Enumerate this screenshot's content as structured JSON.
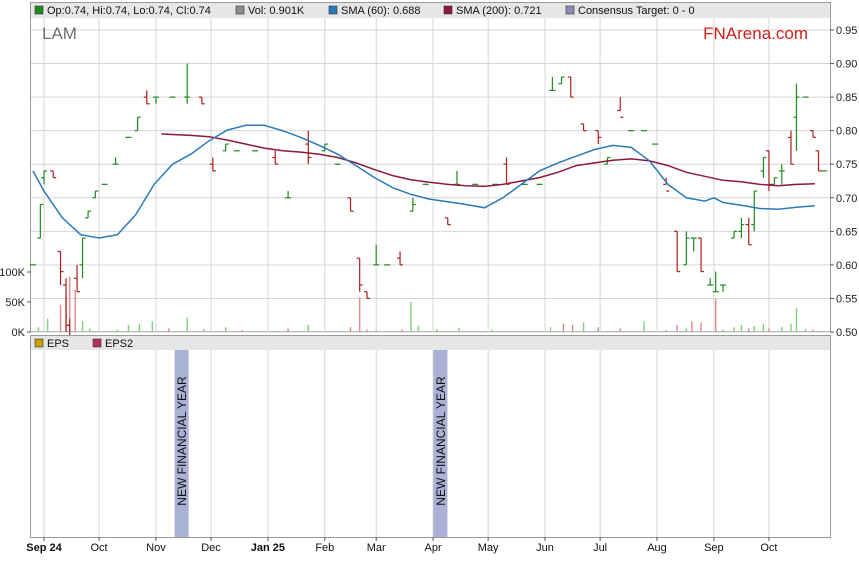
{
  "ticker": "LAM",
  "brand": "FNArena.com",
  "legend_top": [
    {
      "label": "Op:0.74, Hi:0.74, Lo:0.74, Cl:0.74",
      "color": "#1f8a1f"
    },
    {
      "label": "Vol: 0.901K",
      "color": "#8c8c8c"
    },
    {
      "label": "SMA (60): 0.688",
      "color": "#2a7ab8"
    },
    {
      "label": "SMA (200): 0.721",
      "color": "#8b1a3a"
    },
    {
      "label": "Consensus Target: 0 - 0",
      "color": "#8a8fb8"
    }
  ],
  "legend_bottom": [
    {
      "label": "EPS",
      "color": "#c8a000"
    },
    {
      "label": "EPS2",
      "color": "#b03060"
    }
  ],
  "annotations": [
    {
      "text": "NEW FINANCIAL YEAR",
      "day": 75
    },
    {
      "text": "NEW FINANCIAL YEAR",
      "day": 216
    }
  ],
  "colors": {
    "up": "#1f8a1f",
    "down": "#b01c1c",
    "sma60": "#2a7ab8",
    "sma200": "#8b1a3a",
    "band": "#a9b2d4",
    "grid": "#d6d6d6"
  },
  "chart_data": {
    "type": "line",
    "x_months": [
      {
        "label": "Sep 24",
        "day": 0
      },
      {
        "label": "Oct",
        "day": 30
      },
      {
        "label": "Nov",
        "day": 61
      },
      {
        "label": "Dec",
        "day": 91
      },
      {
        "label": "Jan 25",
        "day": 122
      },
      {
        "label": "Feb",
        "day": 153
      },
      {
        "label": "Mar",
        "day": 181
      },
      {
        "label": "Apr",
        "day": 212
      },
      {
        "label": "May",
        "day": 242
      },
      {
        "label": "Jun",
        "day": 273
      },
      {
        "label": "Jul",
        "day": 303
      },
      {
        "label": "Aug",
        "day": 334
      },
      {
        "label": "Sep",
        "day": 365
      },
      {
        "label": "Oct",
        "day": 395
      }
    ],
    "x_range": [
      -6,
      425
    ],
    "price_axis": {
      "min": 0.5,
      "max": 0.95,
      "ticks": [
        "0.50",
        "0.55",
        "0.60",
        "0.65",
        "0.70",
        "0.75",
        "0.80",
        "0.85",
        "0.90",
        "0.95"
      ]
    },
    "volume_axis": {
      "max": 150000,
      "ticks": [
        {
          "label": "0K",
          "v": 0
        },
        {
          "label": "50K",
          "v": 50000
        },
        {
          "label": "100K",
          "v": 100000
        }
      ]
    },
    "price": [
      {
        "d": -6,
        "o": 0.6,
        "h": 0.6,
        "l": 0.6,
        "c": 0.6
      },
      {
        "d": -2,
        "o": 0.64,
        "h": 0.69,
        "l": 0.64,
        "c": 0.69
      },
      {
        "d": 0,
        "o": 0.73,
        "h": 0.74,
        "l": 0.72,
        "c": 0.74
      },
      {
        "d": 5,
        "o": 0.74,
        "h": 0.74,
        "l": 0.73,
        "c": 0.73
      },
      {
        "d": 9,
        "o": 0.62,
        "h": 0.62,
        "l": 0.57,
        "c": 0.59
      },
      {
        "d": 12,
        "o": 0.57,
        "h": 0.58,
        "l": 0.5,
        "c": 0.51
      },
      {
        "d": 14,
        "o": 0.51,
        "h": 0.52,
        "l": 0.49,
        "c": 0.49
      },
      {
        "d": 18,
        "o": 0.58,
        "h": 0.6,
        "l": 0.56,
        "c": 0.56
      },
      {
        "d": 21,
        "o": 0.6,
        "h": 0.64,
        "l": 0.58,
        "c": 0.64
      },
      {
        "d": 24,
        "o": 0.67,
        "h": 0.68,
        "l": 0.67,
        "c": 0.68
      },
      {
        "d": 28,
        "o": 0.7,
        "h": 0.71,
        "l": 0.7,
        "c": 0.71
      },
      {
        "d": 33,
        "o": 0.72,
        "h": 0.72,
        "l": 0.72,
        "c": 0.72
      },
      {
        "d": 39,
        "o": 0.75,
        "h": 0.76,
        "l": 0.75,
        "c": 0.75
      },
      {
        "d": 46,
        "o": 0.79,
        "h": 0.79,
        "l": 0.79,
        "c": 0.79
      },
      {
        "d": 51,
        "o": 0.8,
        "h": 0.82,
        "l": 0.8,
        "c": 0.82
      },
      {
        "d": 56,
        "o": 0.85,
        "h": 0.86,
        "l": 0.84,
        "c": 0.84
      },
      {
        "d": 61,
        "o": 0.85,
        "h": 0.85,
        "l": 0.84,
        "c": 0.85
      },
      {
        "d": 70,
        "o": 0.85,
        "h": 0.85,
        "l": 0.85,
        "c": 0.85
      },
      {
        "d": 78,
        "o": 0.85,
        "h": 0.9,
        "l": 0.84,
        "c": 0.85
      },
      {
        "d": 86,
        "o": 0.85,
        "h": 0.85,
        "l": 0.84,
        "c": 0.84
      },
      {
        "d": 92,
        "o": 0.75,
        "h": 0.76,
        "l": 0.74,
        "c": 0.74
      },
      {
        "d": 99,
        "o": 0.77,
        "h": 0.78,
        "l": 0.77,
        "c": 0.78
      },
      {
        "d": 105,
        "o": 0.77,
        "h": 0.77,
        "l": 0.77,
        "c": 0.77
      },
      {
        "d": 115,
        "o": 0.77,
        "h": 0.77,
        "l": 0.77,
        "c": 0.77
      },
      {
        "d": 126,
        "o": 0.76,
        "h": 0.77,
        "l": 0.75,
        "c": 0.75
      },
      {
        "d": 133,
        "o": 0.7,
        "h": 0.71,
        "l": 0.7,
        "c": 0.7
      },
      {
        "d": 144,
        "o": 0.78,
        "h": 0.8,
        "l": 0.75,
        "c": 0.76
      },
      {
        "d": 153,
        "o": 0.77,
        "h": 0.78,
        "l": 0.77,
        "c": 0.78
      },
      {
        "d": 160,
        "o": 0.75,
        "h": 0.75,
        "l": 0.75,
        "c": 0.75
      },
      {
        "d": 167,
        "o": 0.7,
        "h": 0.7,
        "l": 0.68,
        "c": 0.68
      },
      {
        "d": 172,
        "o": 0.61,
        "h": 0.61,
        "l": 0.56,
        "c": 0.57
      },
      {
        "d": 176,
        "o": 0.56,
        "h": 0.56,
        "l": 0.55,
        "c": 0.55
      },
      {
        "d": 181,
        "o": 0.6,
        "h": 0.63,
        "l": 0.6,
        "c": 0.6
      },
      {
        "d": 187,
        "o": 0.6,
        "h": 0.6,
        "l": 0.6,
        "c": 0.6
      },
      {
        "d": 194,
        "o": 0.61,
        "h": 0.62,
        "l": 0.6,
        "c": 0.6
      },
      {
        "d": 201,
        "o": 0.68,
        "h": 0.7,
        "l": 0.68,
        "c": 0.69
      },
      {
        "d": 208,
        "o": 0.72,
        "h": 0.72,
        "l": 0.72,
        "c": 0.72
      },
      {
        "d": 220,
        "o": 0.67,
        "h": 0.67,
        "l": 0.66,
        "c": 0.66
      },
      {
        "d": 225,
        "o": 0.72,
        "h": 0.74,
        "l": 0.72,
        "c": 0.72
      },
      {
        "d": 235,
        "o": 0.72,
        "h": 0.72,
        "l": 0.72,
        "c": 0.72
      },
      {
        "d": 246,
        "o": 0.72,
        "h": 0.72,
        "l": 0.72,
        "c": 0.72
      },
      {
        "d": 252,
        "o": 0.75,
        "h": 0.76,
        "l": 0.72,
        "c": 0.72
      },
      {
        "d": 262,
        "o": 0.72,
        "h": 0.72,
        "l": 0.72,
        "c": 0.72
      },
      {
        "d": 270,
        "o": 0.72,
        "h": 0.72,
        "l": 0.72,
        "c": 0.72
      },
      {
        "d": 277,
        "o": 0.86,
        "h": 0.88,
        "l": 0.86,
        "c": 0.86
      },
      {
        "d": 282,
        "o": 0.87,
        "h": 0.88,
        "l": 0.87,
        "c": 0.88
      },
      {
        "d": 287,
        "o": 0.88,
        "h": 0.88,
        "l": 0.85,
        "c": 0.85
      },
      {
        "d": 294,
        "o": 0.81,
        "h": 0.81,
        "l": 0.8,
        "c": 0.8
      },
      {
        "d": 302,
        "o": 0.8,
        "h": 0.8,
        "l": 0.78,
        "c": 0.79
      },
      {
        "d": 307,
        "o": 0.75,
        "h": 0.76,
        "l": 0.75,
        "c": 0.76
      },
      {
        "d": 314,
        "o": 0.83,
        "h": 0.85,
        "l": 0.83,
        "c": 0.82
      },
      {
        "d": 320,
        "o": 0.8,
        "h": 0.8,
        "l": 0.8,
        "c": 0.8
      },
      {
        "d": 327,
        "o": 0.8,
        "h": 0.8,
        "l": 0.8,
        "c": 0.8
      },
      {
        "d": 333,
        "o": 0.78,
        "h": 0.78,
        "l": 0.78,
        "c": 0.78
      },
      {
        "d": 339,
        "o": 0.72,
        "h": 0.73,
        "l": 0.72,
        "c": 0.71
      },
      {
        "d": 345,
        "o": 0.65,
        "h": 0.65,
        "l": 0.59,
        "c": 0.59
      },
      {
        "d": 350,
        "o": 0.6,
        "h": 0.65,
        "l": 0.6,
        "c": 0.64
      },
      {
        "d": 354,
        "o": 0.64,
        "h": 0.64,
        "l": 0.62,
        "c": 0.64
      },
      {
        "d": 358,
        "o": 0.64,
        "h": 0.64,
        "l": 0.59,
        "c": 0.59
      },
      {
        "d": 363,
        "o": 0.57,
        "h": 0.58,
        "l": 0.57,
        "c": 0.57
      },
      {
        "d": 366,
        "o": 0.56,
        "h": 0.59,
        "l": 0.56,
        "c": 0.56
      },
      {
        "d": 370,
        "o": 0.57,
        "h": 0.57,
        "l": 0.56,
        "c": 0.57
      },
      {
        "d": 376,
        "o": 0.64,
        "h": 0.65,
        "l": 0.64,
        "c": 0.65
      },
      {
        "d": 380,
        "o": 0.65,
        "h": 0.67,
        "l": 0.64,
        "c": 0.66
      },
      {
        "d": 384,
        "o": 0.66,
        "h": 0.67,
        "l": 0.63,
        "c": 0.63
      },
      {
        "d": 387,
        "o": 0.66,
        "h": 0.71,
        "l": 0.65,
        "c": 0.71
      },
      {
        "d": 392,
        "o": 0.74,
        "h": 0.76,
        "l": 0.73,
        "c": 0.76
      },
      {
        "d": 395,
        "o": 0.77,
        "h": 0.77,
        "l": 0.71,
        "c": 0.72
      },
      {
        "d": 398,
        "o": 0.72,
        "h": 0.73,
        "l": 0.72,
        "c": 0.73
      },
      {
        "d": 402,
        "o": 0.74,
        "h": 0.75,
        "l": 0.72,
        "c": 0.74
      },
      {
        "d": 407,
        "o": 0.79,
        "h": 0.8,
        "l": 0.75,
        "c": 0.75
      },
      {
        "d": 410,
        "o": 0.82,
        "h": 0.87,
        "l": 0.77,
        "c": 0.85
      },
      {
        "d": 415,
        "o": 0.85,
        "h": 0.85,
        "l": 0.85,
        "c": 0.85
      },
      {
        "d": 419,
        "o": 0.8,
        "h": 0.8,
        "l": 0.79,
        "c": 0.79
      },
      {
        "d": 422,
        "o": 0.77,
        "h": 0.77,
        "l": 0.74,
        "c": 0.74
      },
      {
        "d": 425,
        "o": 0.74,
        "h": 0.74,
        "l": 0.74,
        "c": 0.74
      }
    ],
    "sma60": [
      [
        -6,
        0.74
      ],
      [
        0,
        0.71
      ],
      [
        10,
        0.67
      ],
      [
        20,
        0.645
      ],
      [
        30,
        0.64
      ],
      [
        40,
        0.645
      ],
      [
        50,
        0.675
      ],
      [
        60,
        0.72
      ],
      [
        70,
        0.75
      ],
      [
        80,
        0.765
      ],
      [
        90,
        0.785
      ],
      [
        100,
        0.801
      ],
      [
        110,
        0.808
      ],
      [
        120,
        0.808
      ],
      [
        130,
        0.8
      ],
      [
        140,
        0.79
      ],
      [
        150,
        0.778
      ],
      [
        160,
        0.765
      ],
      [
        170,
        0.748
      ],
      [
        180,
        0.73
      ],
      [
        190,
        0.715
      ],
      [
        200,
        0.705
      ],
      [
        210,
        0.698
      ],
      [
        220,
        0.694
      ],
      [
        230,
        0.69
      ],
      [
        240,
        0.685
      ],
      [
        250,
        0.7
      ],
      [
        260,
        0.72
      ],
      [
        270,
        0.74
      ],
      [
        280,
        0.752
      ],
      [
        290,
        0.762
      ],
      [
        300,
        0.772
      ],
      [
        310,
        0.778
      ],
      [
        320,
        0.775
      ],
      [
        330,
        0.755
      ],
      [
        340,
        0.72
      ],
      [
        350,
        0.7
      ],
      [
        360,
        0.695
      ],
      [
        365,
        0.7
      ],
      [
        370,
        0.693
      ],
      [
        380,
        0.689
      ],
      [
        390,
        0.684
      ],
      [
        400,
        0.683
      ],
      [
        410,
        0.686
      ],
      [
        420,
        0.688
      ]
    ],
    "sma200": [
      [
        64,
        0.795
      ],
      [
        80,
        0.793
      ],
      [
        90,
        0.791
      ],
      [
        100,
        0.786
      ],
      [
        110,
        0.78
      ],
      [
        120,
        0.774
      ],
      [
        130,
        0.77
      ],
      [
        140,
        0.768
      ],
      [
        150,
        0.765
      ],
      [
        160,
        0.76
      ],
      [
        170,
        0.752
      ],
      [
        180,
        0.742
      ],
      [
        190,
        0.733
      ],
      [
        200,
        0.727
      ],
      [
        210,
        0.723
      ],
      [
        220,
        0.72
      ],
      [
        230,
        0.718
      ],
      [
        240,
        0.717
      ],
      [
        250,
        0.72
      ],
      [
        260,
        0.725
      ],
      [
        270,
        0.73
      ],
      [
        280,
        0.738
      ],
      [
        290,
        0.748
      ],
      [
        300,
        0.752
      ],
      [
        310,
        0.756
      ],
      [
        320,
        0.758
      ],
      [
        330,
        0.755
      ],
      [
        340,
        0.748
      ],
      [
        350,
        0.738
      ],
      [
        360,
        0.732
      ],
      [
        370,
        0.726
      ],
      [
        380,
        0.724
      ],
      [
        390,
        0.72
      ],
      [
        400,
        0.718
      ],
      [
        410,
        0.72
      ],
      [
        420,
        0.721
      ]
    ],
    "volume": [
      [
        -3,
        8000,
        "up"
      ],
      [
        2,
        22000,
        "up"
      ],
      [
        9,
        45000,
        "down"
      ],
      [
        12,
        60000,
        "down"
      ],
      [
        14,
        92000,
        "down"
      ],
      [
        17,
        70000,
        "down"
      ],
      [
        21,
        18000,
        "up"
      ],
      [
        25,
        6000,
        "up"
      ],
      [
        40,
        4000,
        "up"
      ],
      [
        46,
        12000,
        "up"
      ],
      [
        52,
        14000,
        "up"
      ],
      [
        59,
        18000,
        "up"
      ],
      [
        68,
        6000,
        "down"
      ],
      [
        78,
        24000,
        "up"
      ],
      [
        87,
        5000,
        "down"
      ],
      [
        99,
        8000,
        "up"
      ],
      [
        108,
        3000,
        "down"
      ],
      [
        125,
        2000,
        "up"
      ],
      [
        133,
        6000,
        "down"
      ],
      [
        144,
        12000,
        "up"
      ],
      [
        167,
        8000,
        "down"
      ],
      [
        172,
        58000,
        "down"
      ],
      [
        176,
        4000,
        "down"
      ],
      [
        181,
        3000,
        "up"
      ],
      [
        195,
        4000,
        "down"
      ],
      [
        200,
        50000,
        "up"
      ],
      [
        204,
        10000,
        "up"
      ],
      [
        214,
        5000,
        "up"
      ],
      [
        226,
        7000,
        "up"
      ],
      [
        244,
        4000,
        "up"
      ],
      [
        276,
        8000,
        "up"
      ],
      [
        283,
        14000,
        "down"
      ],
      [
        288,
        12000,
        "down"
      ],
      [
        294,
        16000,
        "up"
      ],
      [
        302,
        8000,
        "down"
      ],
      [
        314,
        6000,
        "down"
      ],
      [
        327,
        18000,
        "up"
      ],
      [
        339,
        3000,
        "down"
      ],
      [
        345,
        12000,
        "down"
      ],
      [
        350,
        6000,
        "up"
      ],
      [
        353,
        18000,
        "down"
      ],
      [
        358,
        16000,
        "down"
      ],
      [
        366,
        55000,
        "down"
      ],
      [
        370,
        4000,
        "up"
      ],
      [
        376,
        8000,
        "up"
      ],
      [
        380,
        12000,
        "up"
      ],
      [
        384,
        6000,
        "down"
      ],
      [
        387,
        10000,
        "up"
      ],
      [
        392,
        14000,
        "up"
      ],
      [
        395,
        6000,
        "down"
      ],
      [
        402,
        8000,
        "up"
      ],
      [
        407,
        14000,
        "up"
      ],
      [
        410,
        40000,
        "up"
      ],
      [
        415,
        5000,
        "up"
      ],
      [
        419,
        4000,
        "down"
      ],
      [
        422,
        2000,
        "up"
      ]
    ]
  }
}
